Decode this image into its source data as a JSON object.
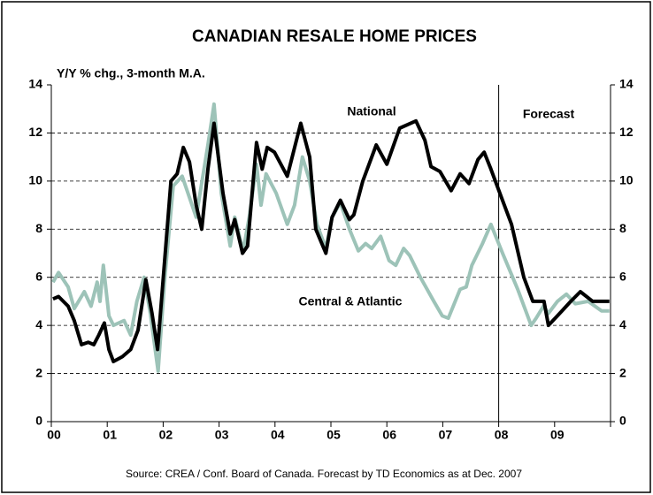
{
  "chart_data": {
    "type": "line",
    "title": "CANADIAN RESALE HOME PRICES",
    "y_axis_label": "Y/Y % chg., 3-month M.A.",
    "source": "Source: CREA / Conf. Board of Canada. Forecast by TD Economics as at Dec. 2007",
    "annotations": [
      "National",
      "Forecast",
      "Central & Atlantic"
    ],
    "forecast_start": 2008,
    "xlim": [
      2000,
      2010
    ],
    "xticks": [
      {
        "value": 2000,
        "label": "00"
      },
      {
        "value": 2001,
        "label": "01"
      },
      {
        "value": 2002,
        "label": "02"
      },
      {
        "value": 2003,
        "label": "03"
      },
      {
        "value": 2004,
        "label": "04"
      },
      {
        "value": 2005,
        "label": "05"
      },
      {
        "value": 2006,
        "label": "06"
      },
      {
        "value": 2007,
        "label": "07"
      },
      {
        "value": 2008,
        "label": "08"
      },
      {
        "value": 2009,
        "label": "09"
      }
    ],
    "ylim": [
      0,
      14
    ],
    "yticks": [
      0,
      2,
      4,
      6,
      8,
      10,
      12,
      14
    ],
    "grid": true,
    "series": [
      {
        "name": "National",
        "color": "#000000",
        "x": [
          2000.03,
          2000.13,
          2000.3,
          2000.41,
          2000.54,
          2000.66,
          2000.76,
          2000.85,
          2000.95,
          2001.03,
          2001.11,
          2001.27,
          2001.42,
          2001.55,
          2001.69,
          2001.8,
          2001.9,
          2002.14,
          2002.25,
          2002.36,
          2002.47,
          2002.59,
          2002.69,
          2002.8,
          2002.91,
          2003.07,
          2003.2,
          2003.28,
          2003.42,
          2003.51,
          2003.67,
          2003.77,
          2003.86,
          2003.99,
          2004.22,
          2004.46,
          2004.62,
          2004.73,
          2004.91,
          2005.02,
          2005.17,
          2005.33,
          2005.41,
          2005.57,
          2005.81,
          2006.0,
          2006.23,
          2006.52,
          2006.68,
          2006.79,
          2006.95,
          2007.15,
          2007.31,
          2007.47,
          2007.63,
          2007.74,
          2007.86,
          2008.02,
          2008.23,
          2008.45,
          2008.61,
          2008.81,
          2008.89,
          2009.05,
          2009.29,
          2009.46,
          2009.68,
          2009.98
        ],
        "values": [
          5.1,
          5.2,
          4.8,
          4.2,
          3.2,
          3.3,
          3.2,
          3.6,
          4.1,
          3.0,
          2.5,
          2.7,
          3.0,
          3.8,
          5.9,
          4.5,
          3.0,
          10.0,
          10.3,
          11.4,
          10.8,
          9.0,
          8.0,
          10.5,
          12.4,
          9.5,
          7.8,
          8.4,
          7.0,
          7.3,
          11.6,
          10.5,
          11.4,
          11.2,
          10.2,
          12.4,
          11.0,
          8.0,
          7.0,
          8.5,
          9.2,
          8.4,
          8.6,
          10.0,
          11.5,
          10.7,
          12.2,
          12.5,
          11.7,
          10.6,
          10.4,
          9.6,
          10.3,
          9.9,
          10.9,
          11.2,
          10.5,
          9.5,
          8.2,
          6.0,
          5.0,
          5.0,
          4.0,
          4.4,
          5.0,
          5.4,
          5.0,
          5.0
        ]
      },
      {
        "name": "Central & Atlantic",
        "color": "#9dc3b8",
        "x": [
          2000.03,
          2000.13,
          2000.3,
          2000.41,
          2000.59,
          2000.71,
          2000.82,
          2000.87,
          2000.93,
          2001.03,
          2001.11,
          2001.3,
          2001.42,
          2001.53,
          2001.66,
          2001.77,
          2001.91,
          2002.03,
          2002.18,
          2002.34,
          2002.59,
          2002.8,
          2002.91,
          2003.04,
          2003.2,
          2003.28,
          2003.43,
          2003.54,
          2003.67,
          2003.75,
          2003.84,
          2004.02,
          2004.22,
          2004.35,
          2004.49,
          2004.62,
          2004.75,
          2004.91,
          2005.02,
          2005.17,
          2005.33,
          2005.49,
          2005.62,
          2005.73,
          2005.89,
          2006.04,
          2006.16,
          2006.3,
          2006.41,
          2006.6,
          2006.84,
          2006.99,
          2007.1,
          2007.31,
          2007.42,
          2007.52,
          2007.71,
          2007.86,
          2008.07,
          2008.34,
          2008.58,
          2008.67,
          2008.8,
          2008.89,
          2009.05,
          2009.21,
          2009.37,
          2009.6,
          2009.84,
          2009.98
        ],
        "values": [
          5.8,
          6.2,
          5.6,
          4.7,
          5.4,
          4.8,
          5.8,
          5.0,
          6.5,
          4.4,
          4.0,
          4.2,
          3.6,
          5.0,
          6.0,
          4.5,
          2.1,
          6.0,
          9.8,
          10.2,
          8.5,
          11.5,
          13.2,
          9.5,
          7.3,
          8.5,
          7.1,
          8.5,
          10.7,
          9.0,
          10.3,
          9.5,
          8.2,
          9.0,
          11.0,
          10.0,
          8.2,
          7.2,
          8.5,
          9.1,
          8.0,
          7.1,
          7.4,
          7.2,
          7.7,
          6.7,
          6.5,
          7.2,
          6.9,
          6.0,
          5.0,
          4.4,
          4.3,
          5.5,
          5.6,
          6.5,
          7.4,
          8.2,
          7.0,
          5.5,
          4.0,
          4.3,
          4.8,
          4.5,
          5.0,
          5.3,
          4.9,
          5.0,
          4.6,
          4.6
        ]
      }
    ]
  }
}
